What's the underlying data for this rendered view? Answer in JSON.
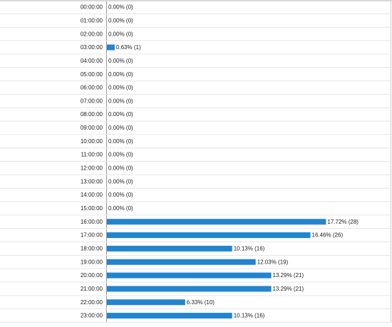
{
  "chart_data": {
    "type": "bar",
    "orientation": "horizontal",
    "categories": [
      "00:00:00",
      "01:00:00",
      "02:00:00",
      "03:00:00",
      "04:00:00",
      "05:00:00",
      "06:00:00",
      "07:00:00",
      "08:00:00",
      "09:00:00",
      "10:00:00",
      "11:00:00",
      "12:00:00",
      "13:00:00",
      "14:00:00",
      "15:00:00",
      "16:00:00",
      "17:00:00",
      "18:00:00",
      "19:00:00",
      "20:00:00",
      "21:00:00",
      "22:00:00",
      "23:00:00"
    ],
    "values": [
      0,
      0,
      0,
      0.63,
      0,
      0,
      0,
      0,
      0,
      0,
      0,
      0,
      0,
      0,
      0,
      0,
      17.72,
      16.46,
      10.13,
      12.03,
      13.29,
      13.29,
      6.33,
      10.13
    ],
    "value_labels": [
      "0.00% (0)",
      "0.00% (0)",
      "0.00% (0)",
      "0.63% (1)",
      "0.00% (0)",
      "0.00% (0)",
      "0.00% (0)",
      "0.00% (0)",
      "0.00% (0)",
      "0.00% (0)",
      "0.00% (0)",
      "0.00% (0)",
      "0.00% (0)",
      "0.00% (0)",
      "0.00% (0)",
      "0.00% (0)",
      "17.72% (28)",
      "16.46% (26)",
      "10.13% (16)",
      "12.03% (19)",
      "13.29% (21)",
      "13.29% (21)",
      "6.33% (10)",
      "10.13% (16)"
    ],
    "color": "#2185d0",
    "xlim": [
      0,
      23
    ]
  }
}
